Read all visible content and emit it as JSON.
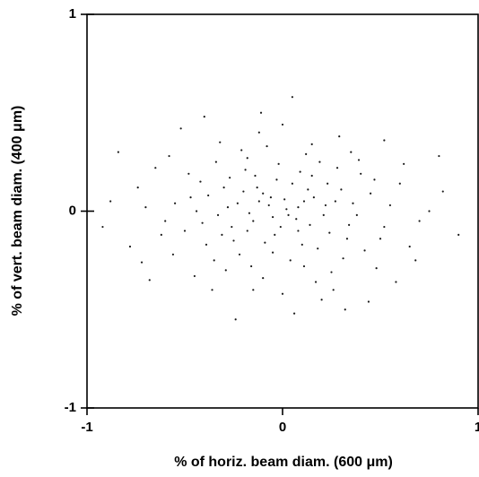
{
  "chart_data": {
    "type": "scatter",
    "xlabel": "% of horiz. beam diam. (600 μm)",
    "ylabel": "% of vert. beam diam. (400 μm)",
    "color": "#1a1a1a",
    "xlim": [
      -1,
      1
    ],
    "ylim": [
      -1,
      1
    ],
    "xticks": [
      -1,
      0,
      1
    ],
    "yticks": [
      -1,
      0,
      1
    ],
    "x": [
      -0.12,
      0.08,
      -0.3,
      0.22,
      -0.05,
      0.15,
      -0.41,
      0.33,
      -0.18,
      0.02,
      -0.25,
      0.45,
      -0.55,
      0.11,
      -0.08,
      0.28,
      -0.35,
      0.05,
      -0.15,
      0.38,
      -0.62,
      0.18,
      -0.02,
      -0.28,
      0.25,
      -0.48,
      0.52,
      -0.1,
      0.12,
      -0.2,
      0.07,
      -0.38,
      0.3,
      -0.04,
      0.16,
      -0.7,
      0.6,
      -0.22,
      0.42,
      -0.12,
      0.0,
      -0.45,
      0.35,
      -0.58,
      0.48,
      -0.32,
      0.2,
      -0.78,
      0.7,
      -0.14,
      0.09,
      -0.26,
      0.24,
      -0.06,
      0.14,
      -0.33,
      0.04,
      -0.19,
      0.27,
      -0.09,
      -0.5,
      0.4,
      -0.16,
      0.19,
      -0.42,
      0.55,
      -0.03,
      0.1,
      -0.23,
      0.31,
      -0.65,
      0.65,
      -0.88,
      0.82,
      -0.36,
      0.29,
      -0.11,
      0.06,
      -0.52,
      0.58,
      -0.07,
      0.03,
      -0.17,
      0.13,
      -0.27,
      0.21,
      -0.39,
      0.36,
      -0.01,
      -0.13,
      -0.44,
      0.47,
      -0.29,
      0.17,
      -0.6,
      0.62,
      -0.21,
      0.26,
      -0.74,
      0.75,
      -0.92,
      0.9,
      -0.4,
      0.44,
      -0.68,
      0.05,
      -0.24,
      0.52,
      -0.84,
      0.8,
      -0.1,
      0.01,
      -0.31,
      0.23,
      -0.18,
      0.08,
      -0.47,
      0.34,
      -0.05,
      0.11,
      0.5,
      -0.56,
      0.15,
      -0.34,
      0.39,
      -0.15,
      0.68,
      -0.72,
      0.0,
      0.32
    ],
    "values": [
      0.05,
      -0.1,
      0.12,
      0.03,
      -0.21,
      0.18,
      -0.06,
      -0.14,
      0.27,
      0.01,
      -0.15,
      0.09,
      0.04,
      -0.28,
      0.33,
      0.22,
      -0.25,
      0.14,
      -0.05,
      -0.02,
      -0.12,
      -0.19,
      0.24,
      0.02,
      -0.31,
      0.19,
      -0.08,
      -0.34,
      0.29,
      0.1,
      -0.04,
      0.08,
      0.11,
      -0.12,
      0.07,
      0.02,
      0.14,
      -0.22,
      -0.2,
      0.4,
      -0.42,
      -0.33,
      0.3,
      0.28,
      -0.29,
      0.35,
      -0.45,
      -0.18,
      -0.05,
      0.18,
      0.2,
      -0.08,
      -0.11,
      0.07,
      -0.07,
      -0.02,
      -0.25,
      0.21,
      0.05,
      -0.16,
      -0.1,
      0.19,
      -0.28,
      0.25,
      0.15,
      0.03,
      0.16,
      -0.17,
      0.04,
      -0.24,
      0.22,
      -0.18,
      0.05,
      0.1,
      -0.4,
      0.38,
      0.5,
      -0.52,
      0.42,
      -0.36,
      0.03,
      -0.02,
      -0.01,
      0.11,
      0.17,
      -0.02,
      -0.17,
      0.04,
      -0.08,
      0.12,
      0.0,
      0.16,
      -0.3,
      -0.36,
      -0.05,
      0.24,
      0.31,
      -0.4,
      0.12,
      0.0,
      -0.08,
      -0.12,
      0.48,
      -0.46,
      -0.35,
      0.58,
      -0.55,
      0.36,
      0.3,
      0.28,
      0.09,
      0.06,
      -0.12,
      0.14,
      -0.1,
      0.02,
      0.07,
      -0.07,
      -0.03,
      0.05,
      -0.14,
      -0.22,
      0.34,
      0.25,
      0.26,
      -0.4,
      -0.25,
      -0.26,
      0.44,
      -0.5
    ]
  }
}
